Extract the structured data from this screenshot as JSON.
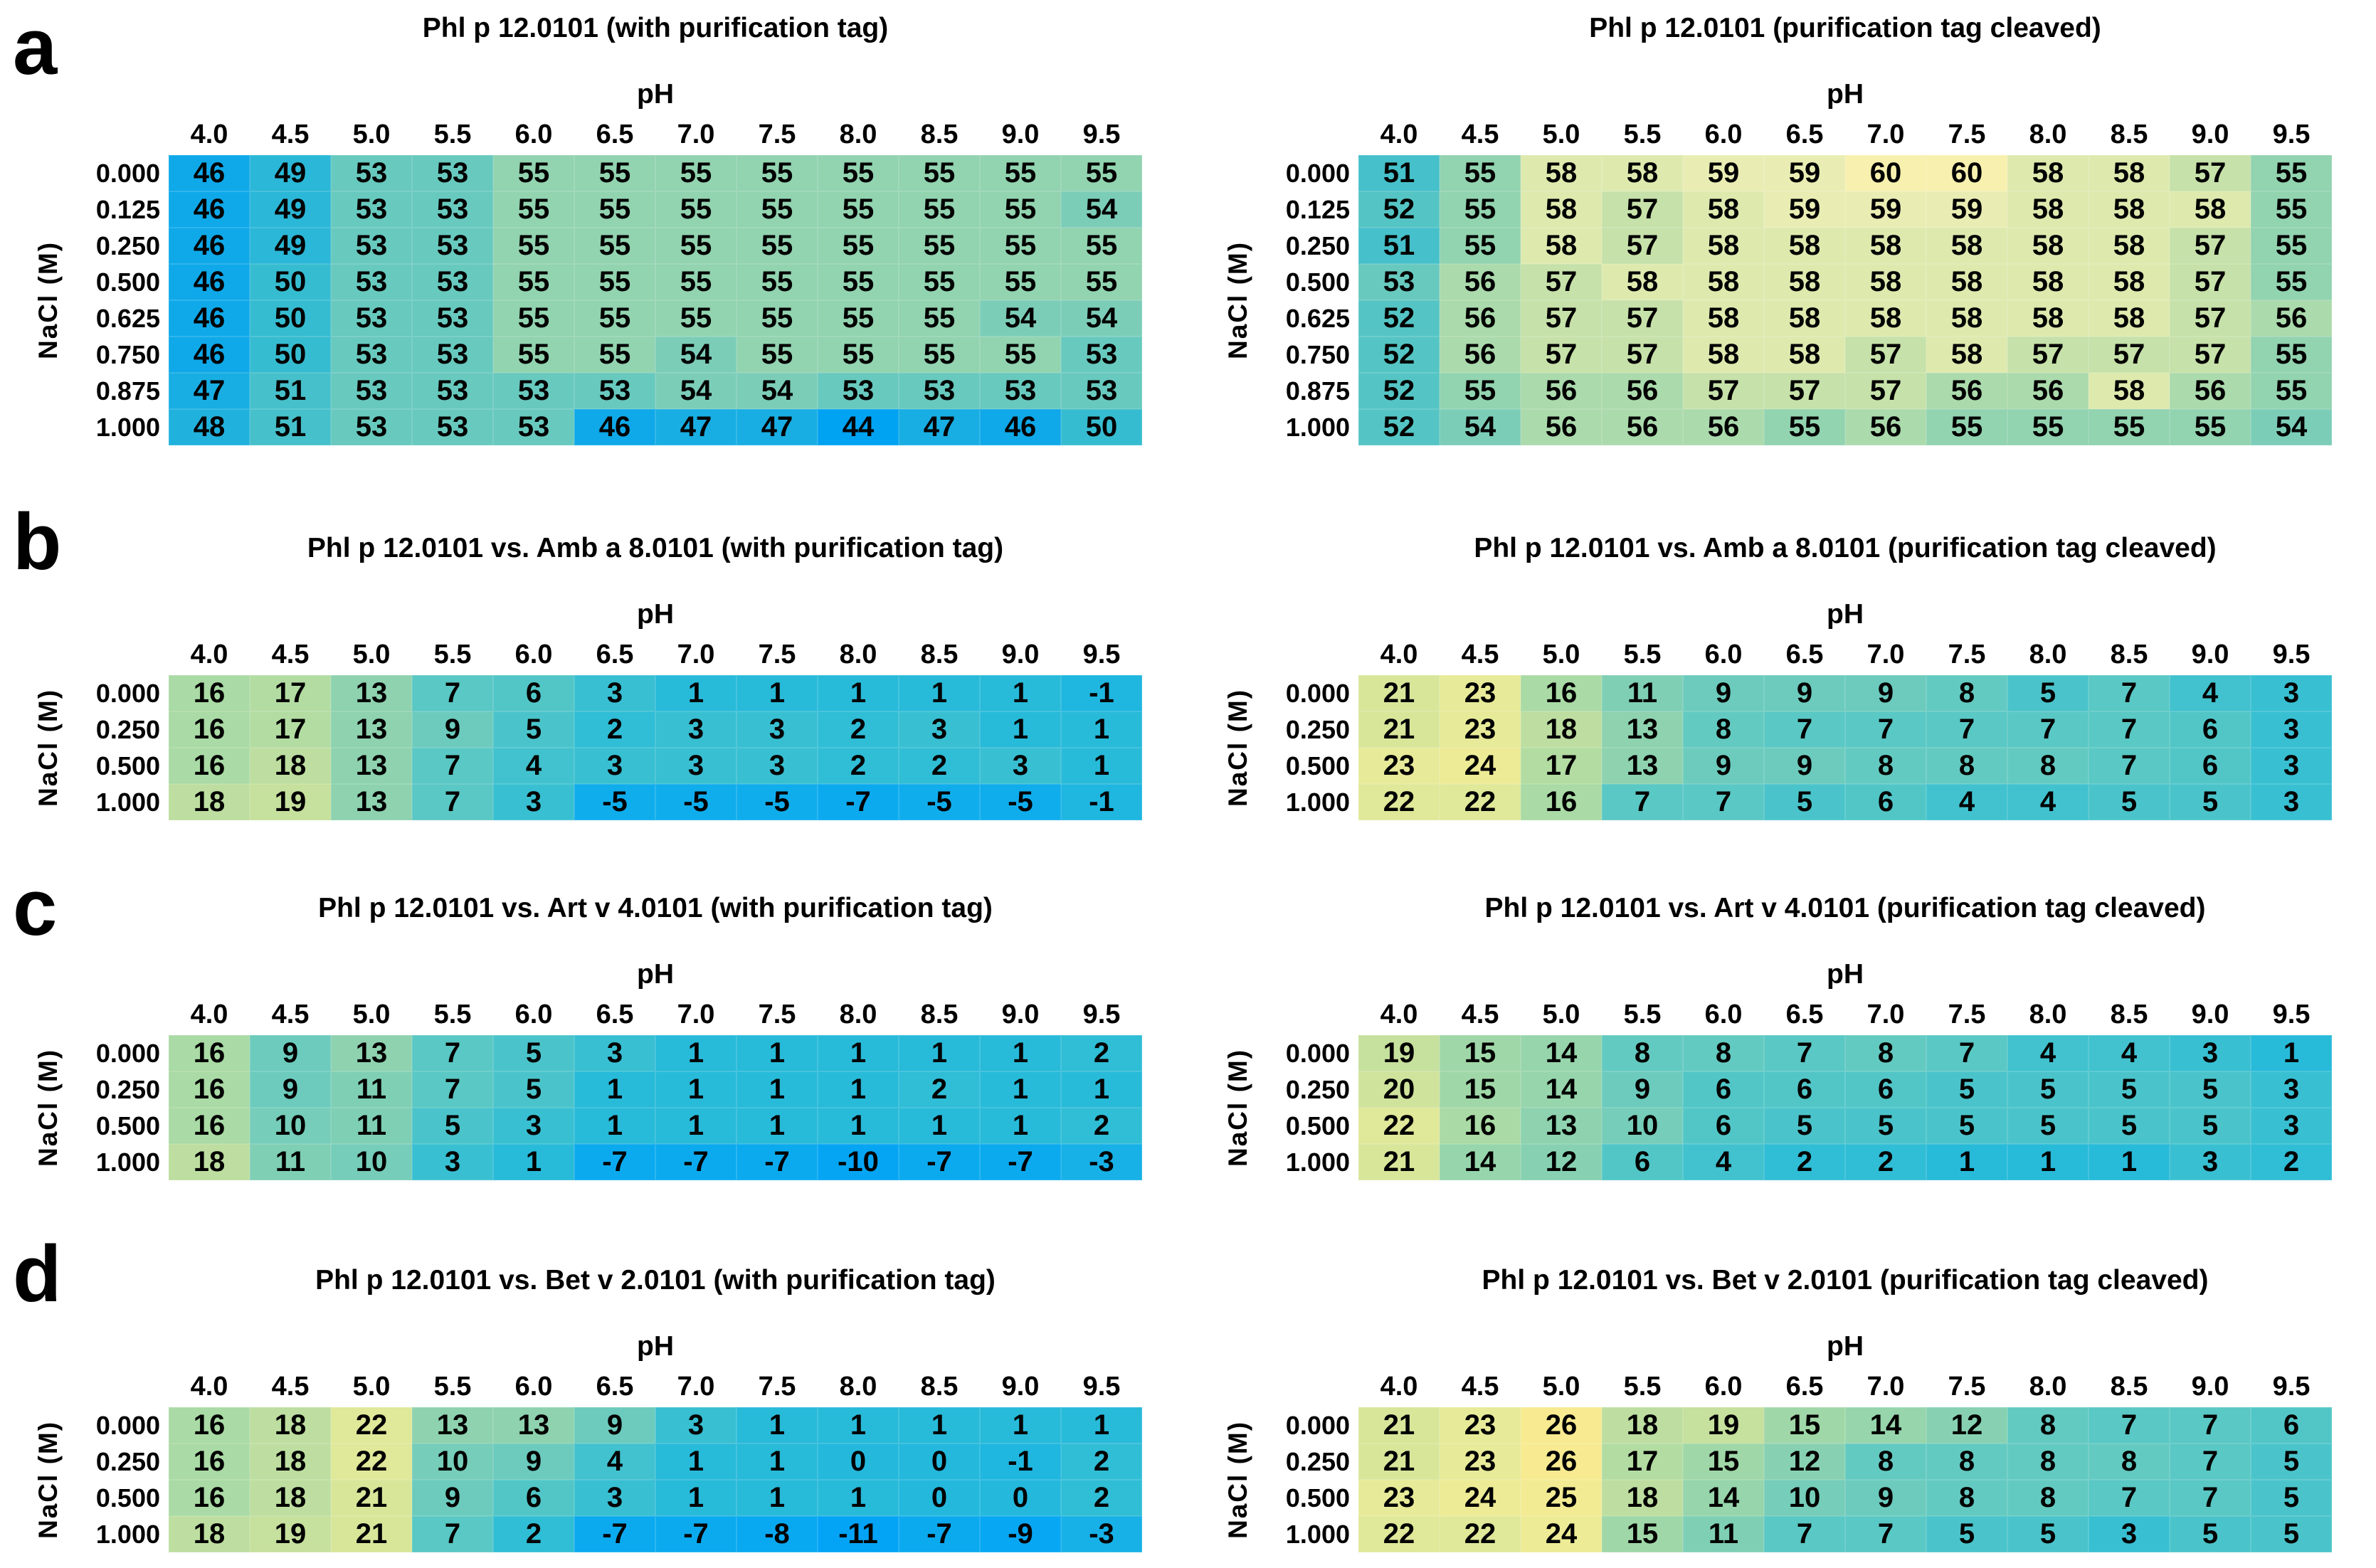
{
  "panels": [
    {
      "letter": "a"
    },
    {
      "letter": "b"
    },
    {
      "letter": "c"
    },
    {
      "letter": "d"
    }
  ],
  "axis": {
    "x_label": "pH",
    "y_label": "NaCl (M)"
  },
  "colormaps": {
    "tm": [
      [
        44,
        "#00A2F2"
      ],
      [
        46,
        "#0FA9E9"
      ],
      [
        48,
        "#20B2DD"
      ],
      [
        50,
        "#36BCD0"
      ],
      [
        52,
        "#55C4C4"
      ],
      [
        53,
        "#68C9BE"
      ],
      [
        54,
        "#7CCDB8"
      ],
      [
        55,
        "#92D3B0"
      ],
      [
        56,
        "#ABDAAC"
      ],
      [
        57,
        "#C6E1A9"
      ],
      [
        58,
        "#DEE9AE"
      ],
      [
        59,
        "#E9EDB3"
      ],
      [
        60,
        "#F7F0AE"
      ]
    ],
    "delta": [
      [
        -11,
        "#03A3F6"
      ],
      [
        -8,
        "#09A9F1"
      ],
      [
        -5,
        "#10ADEC"
      ],
      [
        -3,
        "#17B1E7"
      ],
      [
        -1,
        "#1FB6E0"
      ],
      [
        1,
        "#28BAD9"
      ],
      [
        3,
        "#38BFD2"
      ],
      [
        5,
        "#4AC4CA"
      ],
      [
        7,
        "#5AC8C4"
      ],
      [
        9,
        "#6CCBBD"
      ],
      [
        11,
        "#7FCFB5"
      ],
      [
        13,
        "#8ED2AF"
      ],
      [
        15,
        "#A0D7A8"
      ],
      [
        17,
        "#B3DCA2"
      ],
      [
        19,
        "#C6E09D"
      ],
      [
        21,
        "#D8E69A"
      ],
      [
        23,
        "#E7EA98"
      ],
      [
        24,
        "#EDEB95"
      ],
      [
        26,
        "#F7EA90"
      ]
    ]
  },
  "chart_data": [
    {
      "type": "heatmap",
      "panel": "a",
      "side": "left",
      "scale": "tm",
      "title": "Phl p 12.0101 (with purification tag)",
      "xlabel": "pH",
      "ylabel": "NaCl (M)",
      "x": [
        "4.0",
        "4.5",
        "5.0",
        "5.5",
        "6.0",
        "6.5",
        "7.0",
        "7.5",
        "8.0",
        "8.5",
        "9.0",
        "9.5"
      ],
      "rows": [
        "0.000",
        "0.125",
        "0.250",
        "0.500",
        "0.625",
        "0.750",
        "0.875",
        "1.000"
      ],
      "values": [
        [
          46,
          49,
          53,
          53,
          55,
          55,
          55,
          55,
          55,
          55,
          55,
          55
        ],
        [
          46,
          49,
          53,
          53,
          55,
          55,
          55,
          55,
          55,
          55,
          55,
          54
        ],
        [
          46,
          49,
          53,
          53,
          55,
          55,
          55,
          55,
          55,
          55,
          55,
          55
        ],
        [
          46,
          50,
          53,
          53,
          55,
          55,
          55,
          55,
          55,
          55,
          55,
          55
        ],
        [
          46,
          50,
          53,
          53,
          55,
          55,
          55,
          55,
          55,
          55,
          54,
          54
        ],
        [
          46,
          50,
          53,
          53,
          55,
          55,
          54,
          55,
          55,
          55,
          55,
          53
        ],
        [
          47,
          51,
          53,
          53,
          53,
          53,
          54,
          54,
          53,
          53,
          53,
          53
        ],
        [
          48,
          51,
          53,
          53,
          53,
          46,
          47,
          47,
          44,
          47,
          46,
          50
        ]
      ]
    },
    {
      "type": "heatmap",
      "panel": "a",
      "side": "right",
      "scale": "tm",
      "title": "Phl p 12.0101 (purification tag cleaved)",
      "xlabel": "pH",
      "ylabel": "NaCl (M)",
      "x": [
        "4.0",
        "4.5",
        "5.0",
        "5.5",
        "6.0",
        "6.5",
        "7.0",
        "7.5",
        "8.0",
        "8.5",
        "9.0",
        "9.5"
      ],
      "rows": [
        "0.000",
        "0.125",
        "0.250",
        "0.500",
        "0.625",
        "0.750",
        "0.875",
        "1.000"
      ],
      "values": [
        [
          51,
          55,
          58,
          58,
          59,
          59,
          60,
          60,
          58,
          58,
          57,
          55
        ],
        [
          52,
          55,
          58,
          57,
          58,
          59,
          59,
          59,
          58,
          58,
          58,
          55
        ],
        [
          51,
          55,
          58,
          57,
          58,
          58,
          58,
          58,
          58,
          58,
          57,
          55
        ],
        [
          53,
          56,
          57,
          58,
          58,
          58,
          58,
          58,
          58,
          58,
          57,
          55
        ],
        [
          52,
          56,
          57,
          57,
          58,
          58,
          58,
          58,
          58,
          58,
          57,
          56
        ],
        [
          52,
          56,
          57,
          57,
          58,
          58,
          57,
          58,
          57,
          57,
          57,
          55
        ],
        [
          52,
          55,
          56,
          56,
          57,
          57,
          57,
          56,
          56,
          58,
          56,
          55
        ],
        [
          52,
          54,
          56,
          56,
          56,
          55,
          56,
          55,
          55,
          55,
          55,
          54
        ]
      ]
    },
    {
      "type": "heatmap",
      "panel": "b",
      "side": "left",
      "scale": "delta",
      "title": "Phl p 12.0101 vs. Amb a 8.0101 (with purification tag)",
      "xlabel": "pH",
      "ylabel": "NaCl (M)",
      "x": [
        "4.0",
        "4.5",
        "5.0",
        "5.5",
        "6.0",
        "6.5",
        "7.0",
        "7.5",
        "8.0",
        "8.5",
        "9.0",
        "9.5"
      ],
      "rows": [
        "0.000",
        "0.250",
        "0.500",
        "1.000"
      ],
      "values": [
        [
          16,
          17,
          13,
          7,
          6,
          3,
          1,
          1,
          1,
          1,
          1,
          -1
        ],
        [
          16,
          17,
          13,
          9,
          5,
          2,
          3,
          3,
          2,
          3,
          1,
          1
        ],
        [
          16,
          18,
          13,
          7,
          4,
          3,
          3,
          3,
          2,
          2,
          3,
          1
        ],
        [
          18,
          19,
          13,
          7,
          3,
          -5,
          -5,
          -5,
          -7,
          -5,
          -5,
          -1
        ]
      ]
    },
    {
      "type": "heatmap",
      "panel": "b",
      "side": "right",
      "scale": "delta",
      "title": "Phl p 12.0101 vs. Amb a 8.0101 (purification tag cleaved)",
      "xlabel": "pH",
      "ylabel": "NaCl (M)",
      "x": [
        "4.0",
        "4.5",
        "5.0",
        "5.5",
        "6.0",
        "6.5",
        "7.0",
        "7.5",
        "8.0",
        "8.5",
        "9.0",
        "9.5"
      ],
      "rows": [
        "0.000",
        "0.250",
        "0.500",
        "1.000"
      ],
      "values": [
        [
          21,
          23,
          16,
          11,
          9,
          9,
          9,
          8,
          5,
          7,
          4,
          3
        ],
        [
          21,
          23,
          18,
          13,
          8,
          7,
          7,
          7,
          7,
          7,
          6,
          3
        ],
        [
          23,
          24,
          17,
          13,
          9,
          9,
          8,
          8,
          8,
          7,
          6,
          3
        ],
        [
          22,
          22,
          16,
          7,
          7,
          5,
          6,
          4,
          4,
          5,
          5,
          3
        ]
      ]
    },
    {
      "type": "heatmap",
      "panel": "c",
      "side": "left",
      "scale": "delta",
      "title": "Phl p 12.0101 vs. Art v 4.0101 (with purification tag)",
      "xlabel": "pH",
      "ylabel": "NaCl (M)",
      "x": [
        "4.0",
        "4.5",
        "5.0",
        "5.5",
        "6.0",
        "6.5",
        "7.0",
        "7.5",
        "8.0",
        "8.5",
        "9.0",
        "9.5"
      ],
      "rows": [
        "0.000",
        "0.250",
        "0.500",
        "1.000"
      ],
      "values": [
        [
          16,
          9,
          13,
          7,
          5,
          3,
          1,
          1,
          1,
          1,
          1,
          2
        ],
        [
          16,
          9,
          11,
          7,
          5,
          1,
          1,
          1,
          1,
          2,
          1,
          1
        ],
        [
          16,
          10,
          11,
          5,
          3,
          1,
          1,
          1,
          1,
          1,
          1,
          2
        ],
        [
          18,
          11,
          10,
          3,
          1,
          -7,
          -7,
          -7,
          -10,
          -7,
          -7,
          -3
        ]
      ]
    },
    {
      "type": "heatmap",
      "panel": "c",
      "side": "right",
      "scale": "delta",
      "title": "Phl p 12.0101 vs. Art v 4.0101 (purification tag cleaved)",
      "xlabel": "pH",
      "ylabel": "NaCl (M)",
      "x": [
        "4.0",
        "4.5",
        "5.0",
        "5.5",
        "6.0",
        "6.5",
        "7.0",
        "7.5",
        "8.0",
        "8.5",
        "9.0",
        "9.5"
      ],
      "rows": [
        "0.000",
        "0.250",
        "0.500",
        "1.000"
      ],
      "values": [
        [
          19,
          15,
          14,
          8,
          8,
          7,
          8,
          7,
          4,
          4,
          3,
          1
        ],
        [
          20,
          15,
          14,
          9,
          6,
          6,
          6,
          5,
          5,
          5,
          5,
          3
        ],
        [
          22,
          16,
          13,
          10,
          6,
          5,
          5,
          5,
          5,
          5,
          5,
          3
        ],
        [
          21,
          14,
          12,
          6,
          4,
          2,
          2,
          1,
          1,
          1,
          3,
          2
        ]
      ]
    },
    {
      "type": "heatmap",
      "panel": "d",
      "side": "left",
      "scale": "delta",
      "title": "Phl p 12.0101 vs. Bet v 2.0101 (with purification tag)",
      "xlabel": "pH",
      "ylabel": "NaCl (M)",
      "x": [
        "4.0",
        "4.5",
        "5.0",
        "5.5",
        "6.0",
        "6.5",
        "7.0",
        "7.5",
        "8.0",
        "8.5",
        "9.0",
        "9.5"
      ],
      "rows": [
        "0.000",
        "0.250",
        "0.500",
        "1.000"
      ],
      "values": [
        [
          16,
          18,
          22,
          13,
          13,
          9,
          3,
          1,
          1,
          1,
          1,
          1
        ],
        [
          16,
          18,
          22,
          10,
          9,
          4,
          1,
          1,
          0,
          0,
          -1,
          2
        ],
        [
          16,
          18,
          21,
          9,
          6,
          3,
          1,
          1,
          1,
          0,
          0,
          2
        ],
        [
          18,
          19,
          21,
          7,
          2,
          -7,
          -7,
          -8,
          -11,
          -7,
          -9,
          -3
        ]
      ]
    },
    {
      "type": "heatmap",
      "panel": "d",
      "side": "right",
      "scale": "delta",
      "title": "Phl p 12.0101 vs. Bet v 2.0101 (purification tag cleaved)",
      "xlabel": "pH",
      "ylabel": "NaCl (M)",
      "x": [
        "4.0",
        "4.5",
        "5.0",
        "5.5",
        "6.0",
        "6.5",
        "7.0",
        "7.5",
        "8.0",
        "8.5",
        "9.0",
        "9.5"
      ],
      "rows": [
        "0.000",
        "0.250",
        "0.500",
        "1.000"
      ],
      "values": [
        [
          21,
          23,
          26,
          18,
          19,
          15,
          14,
          12,
          8,
          7,
          7,
          6
        ],
        [
          21,
          23,
          26,
          17,
          15,
          12,
          8,
          8,
          8,
          8,
          7,
          5
        ],
        [
          23,
          24,
          25,
          18,
          14,
          10,
          9,
          8,
          8,
          7,
          7,
          5
        ],
        [
          22,
          22,
          24,
          15,
          11,
          7,
          7,
          5,
          5,
          3,
          5,
          5
        ]
      ]
    }
  ]
}
